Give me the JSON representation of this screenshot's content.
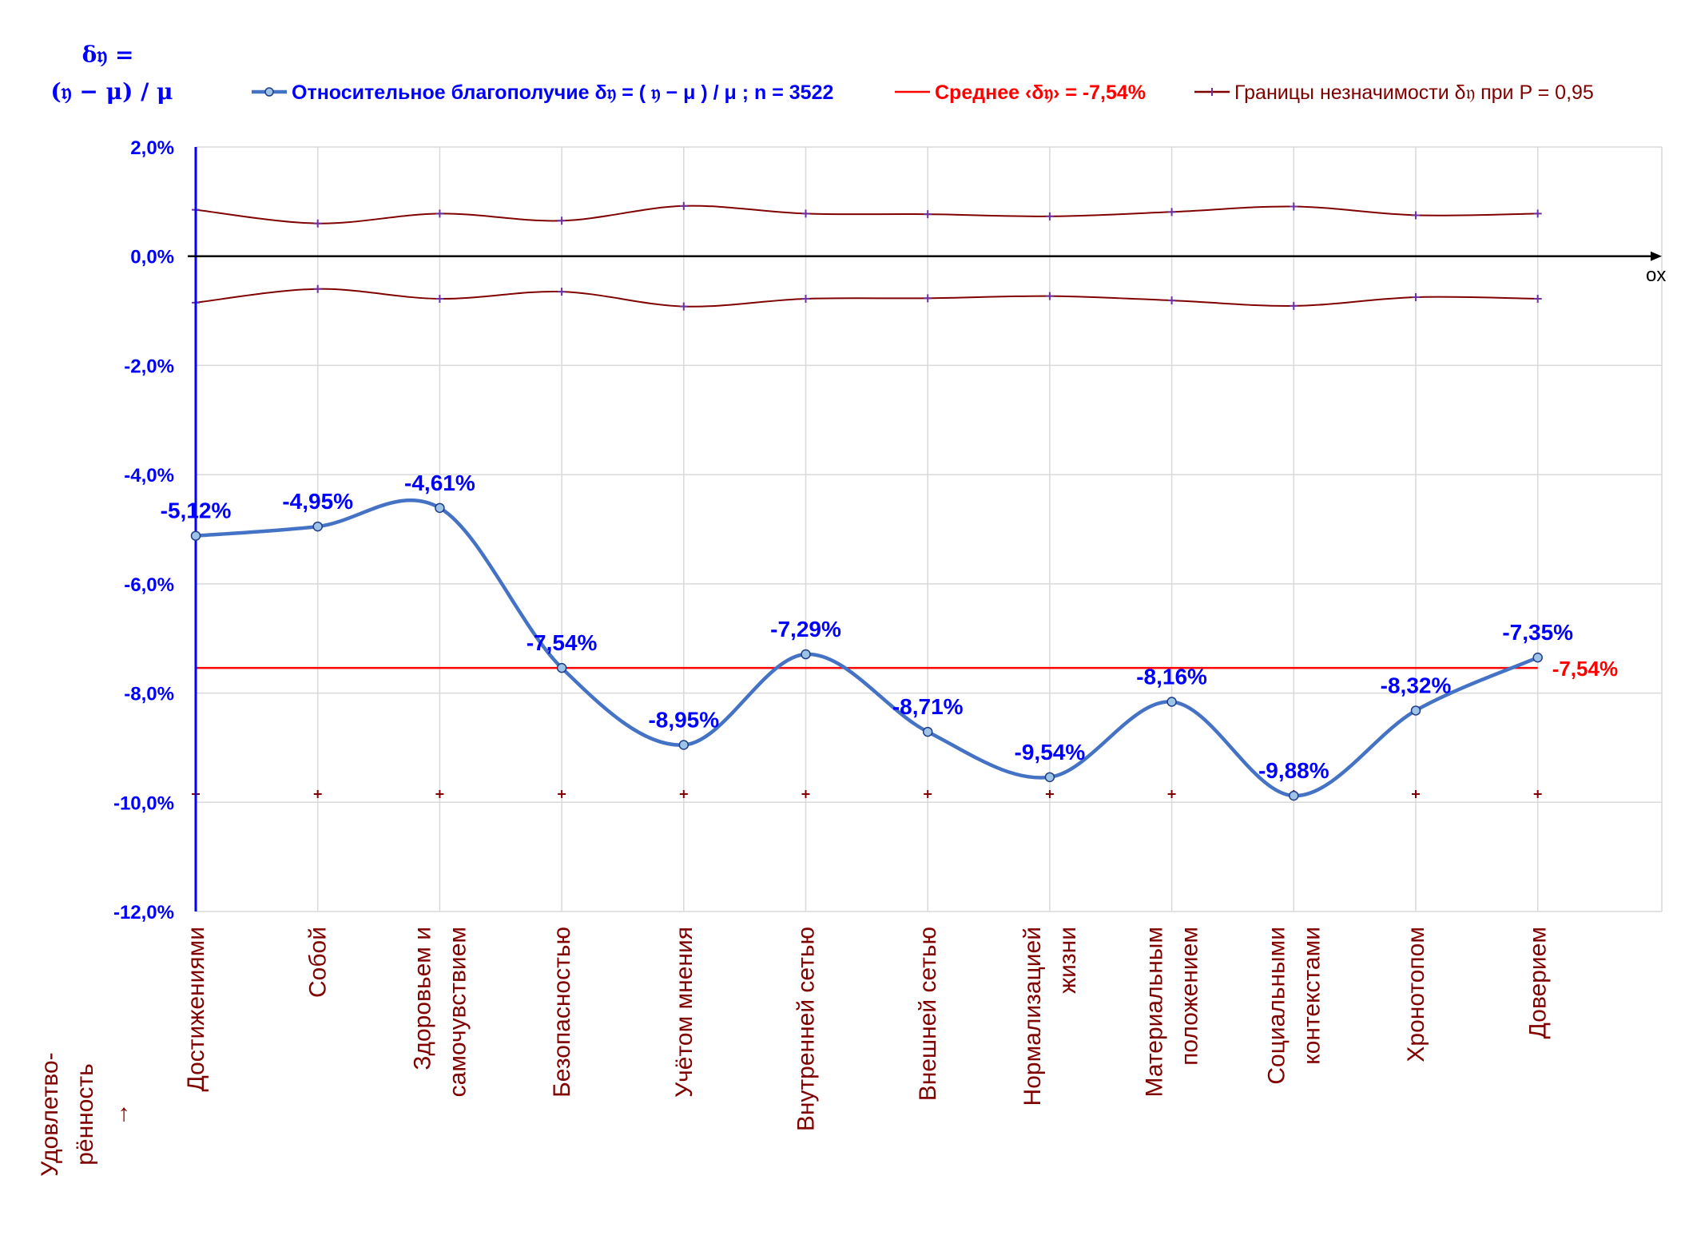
{
  "y_axis_title_line1": "δ𝔶 =",
  "y_axis_title_line2": "(𝔶 − μ) / μ",
  "ox_label": "ox",
  "x_axis_title_line1": "Удовлетво-",
  "x_axis_title_line2": "рённость",
  "x_axis_title_arrow": "→",
  "colors": {
    "main": "#4472C4",
    "main_label": "#0000FF",
    "mean": "#FF0000",
    "bounds": "#800000",
    "bounds_marker": "#7030A0",
    "category_text": "#800000",
    "axis_tick_text": "#0000FF"
  },
  "chart_data": {
    "type": "line",
    "legend": [
      {
        "text": "Относительное благополучие δ𝔶 = ( 𝔶 − μ ) / μ ; n = 3522",
        "color": "#0000FF",
        "bold": true
      },
      {
        "text": "Среднее ‹δ𝔶› = -7,54%",
        "color": "#FF0000",
        "bold": true
      },
      {
        "text": "Границы незначимости δ𝔶 при P = 0,95",
        "color": "#800000",
        "bold": false
      }
    ],
    "categories": [
      [
        "Достижениями"
      ],
      [
        "Собой"
      ],
      [
        "Здоровьем и",
        "самочувствием"
      ],
      [
        "Безопасностью"
      ],
      [
        "Учётом мнения"
      ],
      [
        "Внутренней сетью"
      ],
      [
        "Внешней сетью"
      ],
      [
        "Нормализацией",
        "жизни"
      ],
      [
        "Материальным",
        "положением"
      ],
      [
        "Социальными",
        "контекстами"
      ],
      [
        "Хронотопом"
      ],
      [
        "Доверием"
      ]
    ],
    "yticks": [
      "2,0%",
      "0,0%",
      "-2,0%",
      "-4,0%",
      "-6,0%",
      "-8,0%",
      "-10,0%",
      "-12,0%"
    ],
    "ylim": [
      -12,
      2
    ],
    "series": [
      {
        "name": "Относительное благополучие δ𝔶 = ( 𝔶 − μ ) / μ ; n = 3522",
        "values": [
          -5.12,
          -4.95,
          -4.61,
          -7.54,
          -8.95,
          -7.29,
          -8.71,
          -9.54,
          -8.16,
          -9.88,
          -8.32,
          -7.35
        ],
        "labels": [
          "-5,12%",
          "-4,95%",
          "-4,61%",
          "-7,54%",
          "-8,95%",
          "-7,29%",
          "-8,71%",
          "-9,54%",
          "-8,16%",
          "-9,88%",
          "-8,32%",
          "-7,35%"
        ]
      },
      {
        "name": "Среднее ‹δ𝔶› = -7,54%",
        "value": -7.54,
        "end_label": "-7,54%"
      },
      {
        "name": "Границы незначимости δ𝔶 при P = 0,95",
        "upper": [
          0.85,
          0.6,
          0.78,
          0.65,
          0.92,
          0.78,
          0.77,
          0.73,
          0.81,
          0.91,
          0.75,
          0.78
        ],
        "lower": [
          -0.85,
          -0.6,
          -0.78,
          -0.65,
          -0.92,
          -0.78,
          -0.77,
          -0.73,
          -0.81,
          -0.91,
          -0.75,
          -0.78
        ],
        "marker_row": -9.85
      }
    ],
    "grid": true
  }
}
